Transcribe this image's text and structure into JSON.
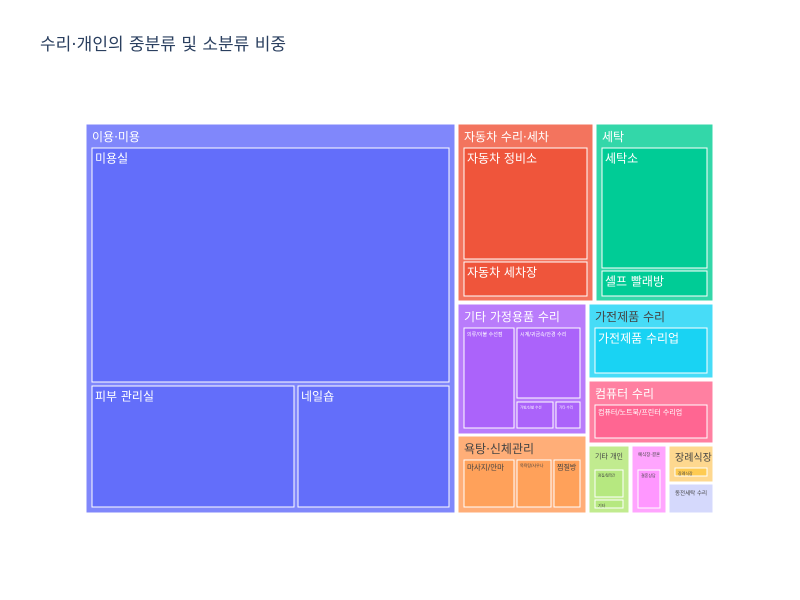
{
  "title": "수리·개인의 중분류 및 소분류 비중",
  "chart_data": {
    "type": "treemap",
    "title": "수리·개인의 중분류 및 소분류 비중",
    "groups": [
      {
        "name": "이용·미용",
        "color": "#8087fb",
        "leafColor": "#636efa",
        "children": [
          {
            "name": "미용실",
            "value": 50
          },
          {
            "name": "피부 관리실",
            "value": 16
          },
          {
            "name": "네일숍",
            "value": 10
          }
        ]
      },
      {
        "name": "자동차 수리·세차",
        "color": "#f3745e",
        "leafColor": "#ef553b",
        "children": [
          {
            "name": "자동차 정비소",
            "value": 7.8
          },
          {
            "name": "자동차 세차장",
            "value": 2.5
          }
        ]
      },
      {
        "name": "세탁",
        "color": "#33d7a9",
        "leafColor": "#00cc96",
        "children": [
          {
            "name": "세탁소",
            "value": 6.9
          },
          {
            "name": "셀프 빨래방",
            "value": 1.5
          }
        ]
      },
      {
        "name": "기타 가정용품 수리",
        "color": "#b97cfb",
        "leafColor": "#ab63fa",
        "children": [
          {
            "name": "의류/이불 수선점",
            "value": 3.0
          },
          {
            "name": "시계/귀금속/안경 수리",
            "value": 2.5
          },
          {
            "name": "가방/신발 수선",
            "value": 1.0
          },
          {
            "name": "기타 수리",
            "value": 0.6
          }
        ]
      },
      {
        "name": "가전제품 수리",
        "color": "#47dcf7",
        "leafColor": "#19d3f3",
        "children": [
          {
            "name": "가전제품 수리업",
            "value": 3.9
          }
        ]
      },
      {
        "name": "욕탕·신체관리",
        "color": "#ffae78",
        "leafColor": "#ffa15a",
        "children": [
          {
            "name": "마사지/안마",
            "value": 1.7
          },
          {
            "name": "목욕탕/사우나",
            "value": 1.2
          },
          {
            "name": "찜질방",
            "value": 0.9
          }
        ]
      },
      {
        "name": "컴퓨터 수리",
        "color": "#ff80a1",
        "leafColor": "#ff6692",
        "children": [
          {
            "name": "컴퓨터/노트북/프린터 수리업",
            "value": 3.2
          }
        ]
      },
      {
        "name": "기타 개인",
        "color": "#c1eb8f",
        "leafColor": "#b6e880",
        "children": [
          {
            "name": "점집/철학관",
            "value": 0.8
          },
          {
            "name": "기타",
            "value": 0.2
          }
        ]
      },
      {
        "name": "예식장·결혼",
        "color": "#ffa5fe",
        "leafColor": "#ff97ff",
        "children": [
          {
            "name": "결혼상담",
            "value": 1.0
          }
        ]
      },
      {
        "name": "장례식장",
        "color": "#fed88f",
        "leafColor": "#fecb52",
        "children": [
          {
            "name": "장례식장",
            "value": 0.25
          }
        ]
      },
      {
        "name": "동전세탁 수리",
        "color": "#d5d9fc",
        "leafColor": "#c8cdfb",
        "children": []
      }
    ]
  }
}
